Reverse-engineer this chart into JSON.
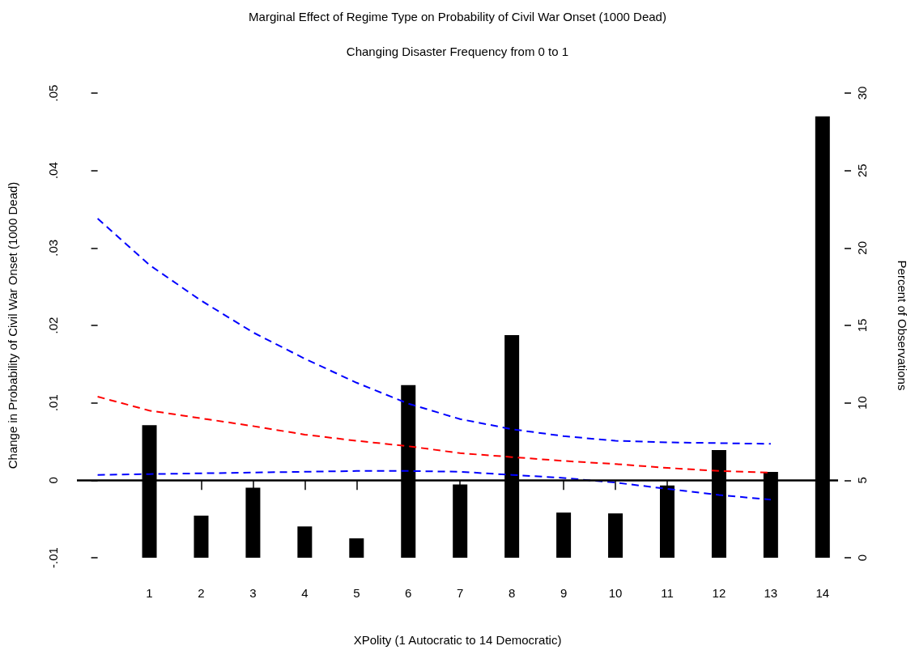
{
  "chart_data": {
    "type": "line",
    "title": "Marginal Effect of Regime Type on Probability of Civil War Onset (1000 Dead)",
    "subtitle": "Changing Disaster Frequency from 0 to 1",
    "xlabel": "XPolity (1 Autocratic to 14 Democratic)",
    "ylabel": "Change in Probability of Civil War Onset (1000 Dead)",
    "y2label": "Percent of Observations",
    "xlim": [
      -0.4,
      14.3
    ],
    "xticks": [
      1,
      2,
      3,
      4,
      5,
      6,
      7,
      8,
      9,
      10,
      11,
      12,
      13,
      14
    ],
    "ylim": [
      -0.01,
      0.05
    ],
    "yticks": [
      {
        "value": -0.01,
        "label": "-.01"
      },
      {
        "value": 0,
        "label": "0"
      },
      {
        "value": 0.01,
        "label": ".01"
      },
      {
        "value": 0.02,
        "label": ".02"
      },
      {
        "value": 0.03,
        "label": ".03"
      },
      {
        "value": 0.04,
        "label": ".04"
      },
      {
        "value": 0.05,
        "label": ".05"
      }
    ],
    "y2lim": [
      0,
      30
    ],
    "y2ticks": [
      0,
      5,
      10,
      15,
      20,
      25,
      30
    ],
    "grid": false,
    "marker": "none",
    "line_style": "dashed",
    "ref_lines": [
      {
        "axis": "y",
        "value": 0,
        "label": null,
        "color": "#000000",
        "line_style": "solid"
      }
    ],
    "series": [
      {
        "type": "bar",
        "axis": "y2",
        "color": "#000000",
        "x": [
          1,
          2,
          3,
          4,
          5,
          6,
          7,
          8,
          9,
          10,
          11,
          12,
          13,
          14
        ],
        "values": [
          8.56,
          2.72,
          4.52,
          2.02,
          1.25,
          11.14,
          4.73,
          14.37,
          2.91,
          2.86,
          4.67,
          6.95,
          5.54,
          28.5
        ]
      },
      {
        "color": "#0000ff",
        "x": [
          0,
          1,
          2,
          3,
          4,
          5,
          6,
          7,
          8,
          9,
          10,
          11,
          12,
          13
        ],
        "values": [
          0.0338,
          0.0278,
          0.0232,
          0.0191,
          0.0157,
          0.0126,
          0.0099,
          0.0079,
          0.0066,
          0.0057,
          0.0051,
          0.0049,
          0.0048,
          0.0047
        ]
      },
      {
        "color": "#ff0000",
        "x": [
          0,
          1,
          2,
          3,
          4,
          5,
          6,
          7,
          8,
          9,
          10,
          11,
          12,
          13
        ],
        "values": [
          0.0108,
          0.009,
          0.008,
          0.007,
          0.0059,
          0.0051,
          0.0044,
          0.0035,
          0.003,
          0.0025,
          0.0021,
          0.0016,
          0.0012,
          0.001
        ]
      },
      {
        "color": "#0000ff",
        "x": [
          0,
          1,
          2,
          3,
          4,
          5,
          6,
          7,
          8,
          9,
          10,
          11,
          12,
          13
        ],
        "values": [
          0.0007,
          0.0008,
          0.0009,
          0.001,
          0.0011,
          0.0012,
          0.0012,
          0.0011,
          0.0007,
          0.0003,
          -0.0003,
          -0.0011,
          -0.0019,
          -0.0025
        ]
      }
    ]
  }
}
